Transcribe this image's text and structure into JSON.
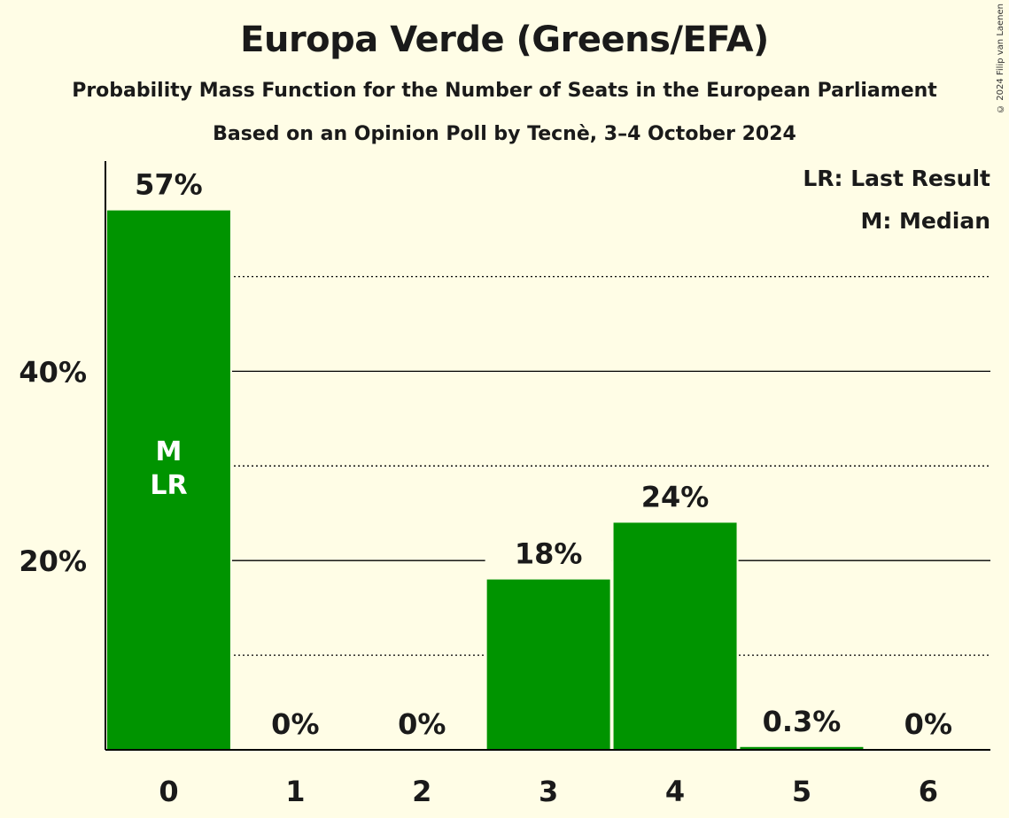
{
  "copyright": "© 2024 Filip van Laenen",
  "chart_data": {
    "type": "bar",
    "title": "Europa Verde (Greens/EFA)",
    "subtitle": "Probability Mass Function for the Number of Seats in the European Parliament",
    "subtitle2": "Based on an Opinion Poll by Tecnè, 3–4 October 2024",
    "categories": [
      "0",
      "1",
      "2",
      "3",
      "4",
      "5",
      "6"
    ],
    "values": [
      57,
      0,
      0,
      18,
      24,
      0.3,
      0
    ],
    "value_labels": [
      "57%",
      "0%",
      "0%",
      "18%",
      "24%",
      "0.3%",
      "0%"
    ],
    "ylim": [
      0,
      62
    ],
    "yticks": [
      20,
      40
    ],
    "ytick_labels": [
      "20%",
      "40%"
    ],
    "minor_gridlines": [
      10,
      30,
      50
    ],
    "bar_color": "#009400",
    "in_bar_labels": [
      {
        "category": "0",
        "lines": [
          "M",
          "LR"
        ]
      }
    ],
    "legend": [
      "LR: Last Result",
      "M: Median"
    ],
    "legend_position": "top-right"
  }
}
